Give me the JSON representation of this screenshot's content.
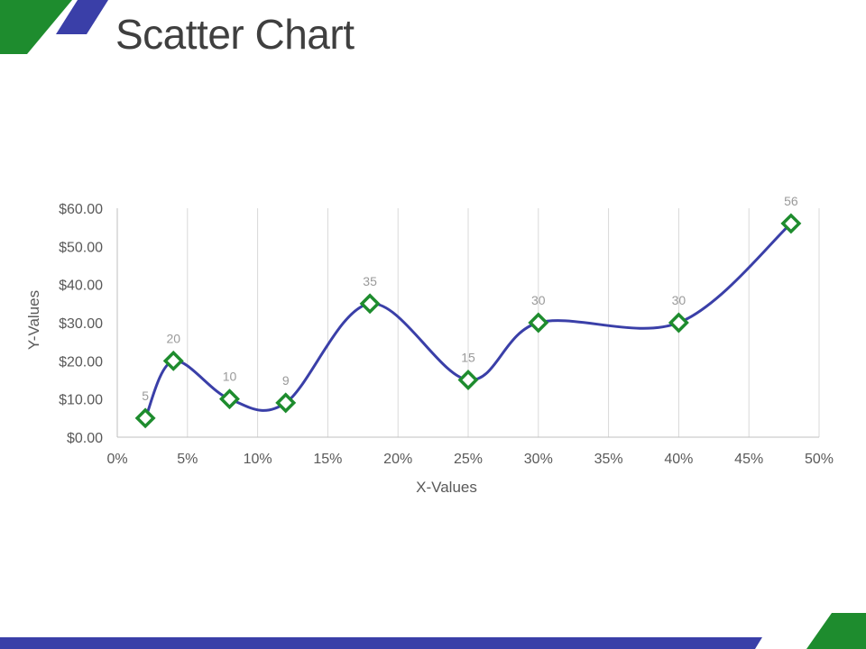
{
  "slide": {
    "title": "Scatter Chart",
    "colors": {
      "green": "#1e8c2e",
      "blue": "#3a3fa8",
      "line": "#3a3fa8",
      "marker": "#1e8c2e",
      "grid": "#d9d9d9",
      "text": "#595959",
      "label": "#9a9a9a"
    }
  },
  "chart_data": {
    "type": "scatter",
    "title": "",
    "xlabel": "X-Values",
    "ylabel": "Y-Values",
    "xlim": [
      0,
      0.5
    ],
    "ylim": [
      0,
      60
    ],
    "x_ticks": [
      "0%",
      "5%",
      "10%",
      "15%",
      "20%",
      "25%",
      "30%",
      "35%",
      "40%",
      "45%",
      "50%"
    ],
    "y_ticks": [
      "$0.00",
      "$10.00",
      "$20.00",
      "$30.00",
      "$40.00",
      "$50.00",
      "$60.00"
    ],
    "grid": "vertical",
    "smooth_line": true,
    "marker": "diamond",
    "series": [
      {
        "x": [
          0.02,
          0.04,
          0.08,
          0.12,
          0.18,
          0.25,
          0.3,
          0.4,
          0.48
        ],
        "y": [
          5,
          20,
          10,
          9,
          35,
          15,
          30,
          30,
          56
        ],
        "labels": [
          "5",
          "20",
          "10",
          "9",
          "35",
          "15",
          "30",
          "30",
          "56"
        ]
      }
    ]
  }
}
